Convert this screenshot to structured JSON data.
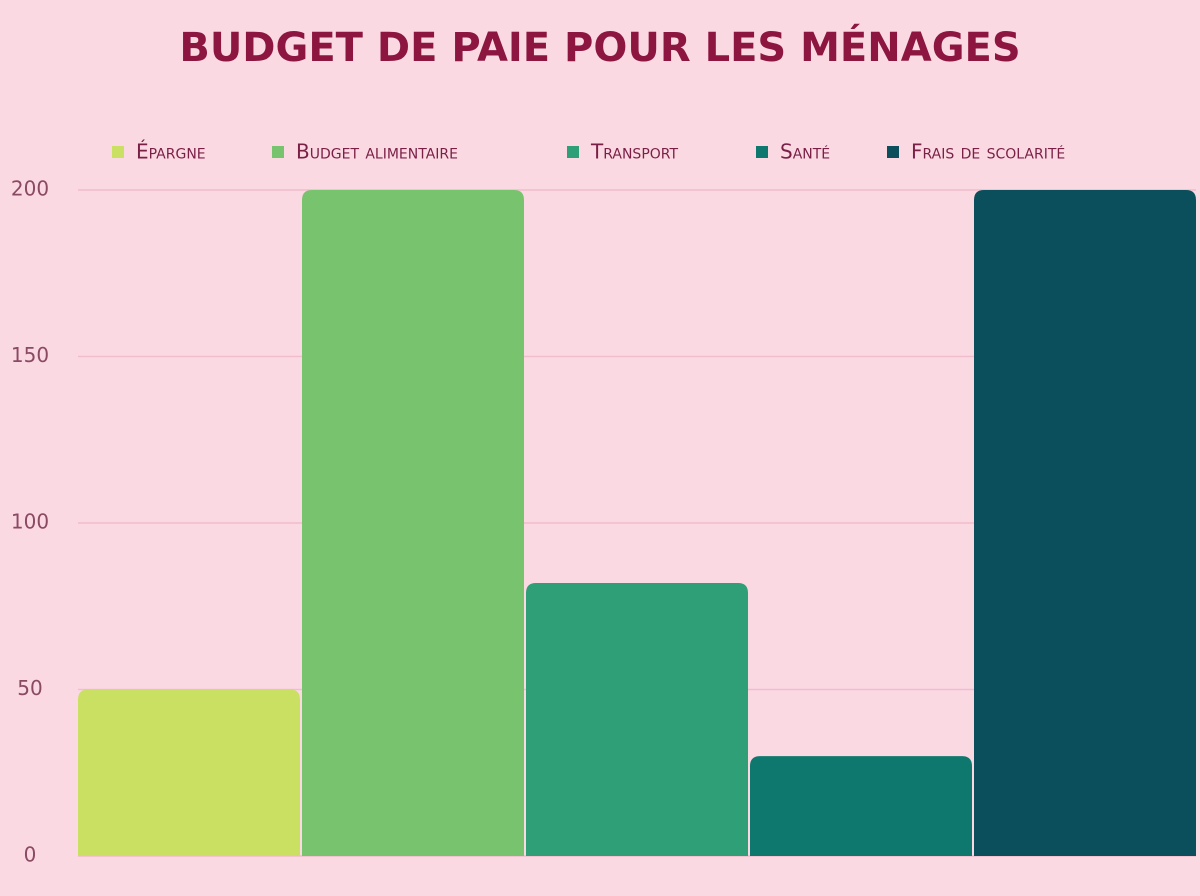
{
  "chart_data": {
    "type": "bar",
    "title": "BUDGET DE PAIE POUR LES MÉNAGES",
    "categories": [
      null
    ],
    "series": [
      {
        "name": "Épargne",
        "color": "#c9e062",
        "values": [
          50
        ]
      },
      {
        "name": "Budget alimentaire",
        "color": "#78c46e",
        "values": [
          200
        ]
      },
      {
        "name": "Transport",
        "color": "#2e9f77",
        "values": [
          82
        ]
      },
      {
        "name": "Santé",
        "color": "#0f786e",
        "values": [
          30
        ]
      },
      {
        "name": "Frais de scolarité",
        "color": "#0b4f5d",
        "values": [
          200
        ]
      }
    ],
    "ylim": [
      0,
      200
    ],
    "yticks": [
      0,
      50,
      100,
      150,
      200
    ],
    "grid": true,
    "legend": "top"
  }
}
